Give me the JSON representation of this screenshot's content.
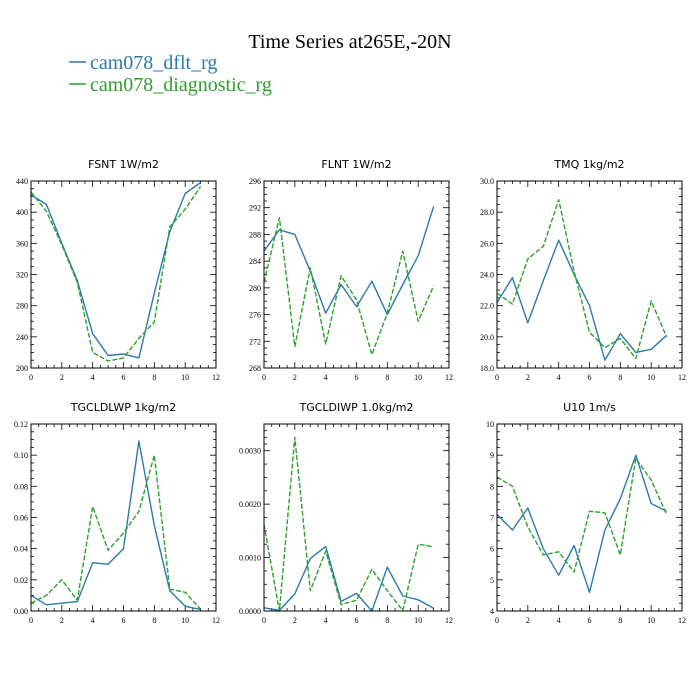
{
  "figure": {
    "title": "Time Series at265E,-20N",
    "legend": [
      {
        "label": "cam078_dflt_rg",
        "color": "#2a7ab0"
      },
      {
        "label": "cam078_diagnostic_rg",
        "color": "#2ca02c"
      }
    ]
  },
  "chart_data": [
    {
      "type": "line",
      "title": "FSNT   1W/m2",
      "xlim": [
        0,
        12
      ],
      "xticks": [
        0,
        2,
        4,
        6,
        8,
        10,
        12
      ],
      "ylim": [
        200,
        440
      ],
      "yticks": [
        200,
        240,
        280,
        320,
        360,
        400,
        440
      ],
      "ytick_labels": [
        "200",
        "240",
        "280",
        "320",
        "360",
        "400",
        "440"
      ],
      "x": [
        0,
        1,
        2,
        3,
        4,
        5,
        6,
        7,
        8,
        9,
        10,
        11
      ],
      "series": [
        {
          "name": "cam078_dflt_rg",
          "color": "#2a7ab0",
          "dash": "",
          "values": [
            422,
            410,
            360,
            312,
            244,
            216,
            218,
            213,
            296,
            375,
            424,
            438
          ]
        },
        {
          "name": "cam078_diagnostic_rg",
          "color": "#2ca02c",
          "dash": "5,2",
          "values": [
            426,
            401,
            358,
            310,
            220,
            209,
            213,
            238,
            259,
            381,
            404,
            433
          ]
        }
      ]
    },
    {
      "type": "line",
      "title": "FLNT   1W/m2",
      "xlim": [
        0,
        12
      ],
      "xticks": [
        0,
        2,
        4,
        6,
        8,
        10,
        12
      ],
      "ylim": [
        268,
        296
      ],
      "yticks": [
        268,
        272,
        276,
        280,
        284,
        288,
        292,
        296
      ],
      "ytick_labels": [
        "268",
        "272",
        "276",
        "280",
        "284",
        "288",
        "292",
        "296"
      ],
      "x": [
        0,
        1,
        2,
        3,
        4,
        5,
        6,
        7,
        8,
        9,
        10,
        11
      ],
      "series": [
        {
          "name": "cam078_dflt_rg",
          "color": "#2a7ab0",
          "dash": "",
          "values": [
            285.5,
            288.7,
            288.0,
            282.5,
            276.2,
            280.5,
            277.2,
            281.0,
            276.0,
            280.5,
            284.8,
            292.2
          ]
        },
        {
          "name": "cam078_diagnostic_rg",
          "color": "#2ca02c",
          "dash": "5,2",
          "values": [
            280.8,
            290.5,
            271.2,
            283.0,
            271.6,
            281.8,
            278.2,
            270.0,
            276.2,
            285.5,
            275.0,
            280.3
          ]
        }
      ]
    },
    {
      "type": "line",
      "title": "TMQ   1kg/m2",
      "xlim": [
        0,
        12
      ],
      "xticks": [
        0,
        2,
        4,
        6,
        8,
        10,
        12
      ],
      "ylim": [
        18,
        30
      ],
      "yticks": [
        18,
        20,
        22,
        24,
        26,
        28,
        30
      ],
      "ytick_labels": [
        "18.0",
        "20.0",
        "22.0",
        "24.0",
        "26.0",
        "28.0",
        "30.0"
      ],
      "x": [
        0,
        1,
        2,
        3,
        4,
        5,
        6,
        7,
        8,
        9,
        10,
        11
      ],
      "series": [
        {
          "name": "cam078_dflt_rg",
          "color": "#2a7ab0",
          "dash": "",
          "values": [
            22.2,
            23.8,
            20.9,
            23.6,
            26.2,
            24.0,
            22.0,
            18.5,
            20.2,
            19.0,
            19.2,
            20.1
          ]
        },
        {
          "name": "cam078_diagnostic_rg",
          "color": "#2ca02c",
          "dash": "5,2",
          "values": [
            22.8,
            22.1,
            25.0,
            25.8,
            28.8,
            24.2,
            20.3,
            19.3,
            19.9,
            18.6,
            22.3,
            20.0
          ]
        }
      ]
    },
    {
      "type": "line",
      "title": "TGCLDLWP   1kg/m2",
      "xlim": [
        0,
        12
      ],
      "xticks": [
        0,
        2,
        4,
        6,
        8,
        10,
        12
      ],
      "ylim": [
        0,
        0.12
      ],
      "yticks": [
        0,
        0.02,
        0.04,
        0.06,
        0.08,
        0.1,
        0.12
      ],
      "ytick_labels": [
        "0.00",
        "0.02",
        "0.04",
        "0.06",
        "0.08",
        "0.10",
        "0.12"
      ],
      "x": [
        0,
        1,
        2,
        3,
        4,
        5,
        6,
        7,
        8,
        9,
        10,
        11
      ],
      "series": [
        {
          "name": "cam078_dflt_rg",
          "color": "#2a7ab0",
          "dash": "",
          "values": [
            0.01,
            0.004,
            0.005,
            0.006,
            0.031,
            0.03,
            0.04,
            0.109,
            0.055,
            0.013,
            0.003,
            0.001
          ]
        },
        {
          "name": "cam078_diagnostic_rg",
          "color": "#2ca02c",
          "dash": "5,2",
          "values": [
            0.005,
            0.01,
            0.02,
            0.007,
            0.067,
            0.039,
            0.05,
            0.064,
            0.1,
            0.014,
            0.012,
            0.001
          ]
        }
      ]
    },
    {
      "type": "line",
      "title": "TGCLDIWP   1.0kg/m2",
      "xlim": [
        0,
        12
      ],
      "xticks": [
        0,
        2,
        4,
        6,
        8,
        10,
        12
      ],
      "ylim": [
        0,
        0.0035
      ],
      "yticks": [
        0,
        0.001,
        0.002,
        0.003
      ],
      "ytick_labels": [
        "0.0000",
        "0.0010",
        "0.0020",
        "0.0030"
      ],
      "x": [
        0,
        1,
        2,
        3,
        4,
        5,
        6,
        7,
        8,
        9,
        10,
        11
      ],
      "series": [
        {
          "name": "cam078_dflt_rg",
          "color": "#2a7ab0",
          "dash": "",
          "values": [
            6e-05,
            1e-05,
            0.00032,
            0.00098,
            0.00121,
            0.00018,
            0.00033,
            0.0,
            0.00082,
            0.00028,
            0.00021,
            5e-05
          ]
        },
        {
          "name": "cam078_diagnostic_rg",
          "color": "#2ca02c",
          "dash": "5,2",
          "values": [
            0.00162,
            0.0,
            0.00325,
            0.00038,
            0.00112,
            0.00012,
            0.0002,
            0.00078,
            0.00038,
            1e-05,
            0.00125,
            0.0012
          ]
        }
      ]
    },
    {
      "type": "line",
      "title": "U10   1m/s",
      "xlim": [
        0,
        12
      ],
      "xticks": [
        0,
        2,
        4,
        6,
        8,
        10,
        12
      ],
      "ylim": [
        4,
        10
      ],
      "yticks": [
        4,
        5,
        6,
        7,
        8,
        9,
        10
      ],
      "ytick_labels": [
        "4",
        "5",
        "6",
        "7",
        "8",
        "9",
        "10"
      ],
      "x": [
        0,
        1,
        2,
        3,
        4,
        5,
        6,
        7,
        8,
        9,
        10,
        11
      ],
      "series": [
        {
          "name": "cam078_dflt_rg",
          "color": "#2a7ab0",
          "dash": "",
          "values": [
            7.1,
            6.6,
            7.3,
            6.0,
            5.15,
            6.1,
            4.6,
            6.6,
            7.6,
            9.0,
            7.45,
            7.2
          ]
        },
        {
          "name": "cam078_diagnostic_rg",
          "color": "#2ca02c",
          "dash": "5,2",
          "values": [
            8.3,
            8.0,
            6.7,
            5.8,
            5.9,
            5.25,
            7.2,
            7.15,
            5.8,
            8.9,
            8.2,
            7.1
          ]
        }
      ]
    }
  ]
}
